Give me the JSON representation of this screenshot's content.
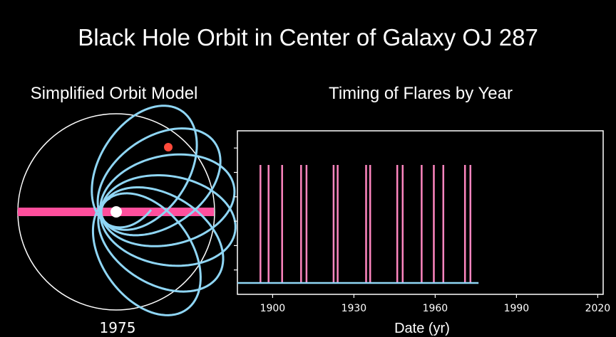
{
  "title": "Black Hole Orbit in Center of Galaxy OJ 287",
  "left_panel": {
    "subtitle": "Simplified Orbit Model",
    "year_label": "1975"
  },
  "chart_data": {
    "type": "bar",
    "title": "Timing of Flares by Year",
    "xlabel": "Date (yr)",
    "ylabel": "",
    "xlim": [
      1887,
      2022
    ],
    "xticks": [
      "1900",
      "1930",
      "1960",
      "1990",
      "2020"
    ],
    "xtick_values": [
      1900,
      1930,
      1960,
      1990,
      2020
    ],
    "flare_years": [
      1895.5,
      1898.5,
      1903.5,
      1910.5,
      1912.5,
      1922.5,
      1924.0,
      1934.5,
      1936.0,
      1946.0,
      1948.0,
      1955.0,
      1959.5,
      1963.0,
      1971.0,
      1973.0
    ],
    "baseline_end": 1976,
    "colors": {
      "flare": "#ff86c0",
      "baseline": "#8fd6f5",
      "axis": "#ffffff"
    }
  },
  "colors": {
    "orbit": "#8fd6f5",
    "band": "#ff4f9d",
    "dot": "#ff4a3b",
    "center": "#ffffff"
  }
}
